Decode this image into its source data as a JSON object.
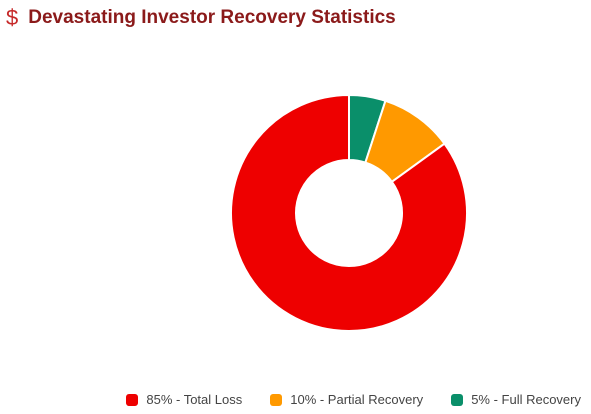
{
  "header": {
    "icon": "dollar-icon",
    "icon_glyph": "$",
    "title": "Devastating Investor Recovery Statistics"
  },
  "chart_data": {
    "type": "pie",
    "donut": true,
    "categories": [
      "Total Loss",
      "Partial Recovery",
      "Full Recovery"
    ],
    "values": [
      85,
      10,
      5
    ],
    "colors": [
      "#ee0000",
      "#ff9900",
      "#0a8f6a"
    ],
    "legend": {
      "placement": "bottom-right",
      "entries": [
        "85% - Total Loss",
        "10% - Partial Recovery",
        "5% - Full Recovery"
      ]
    }
  }
}
